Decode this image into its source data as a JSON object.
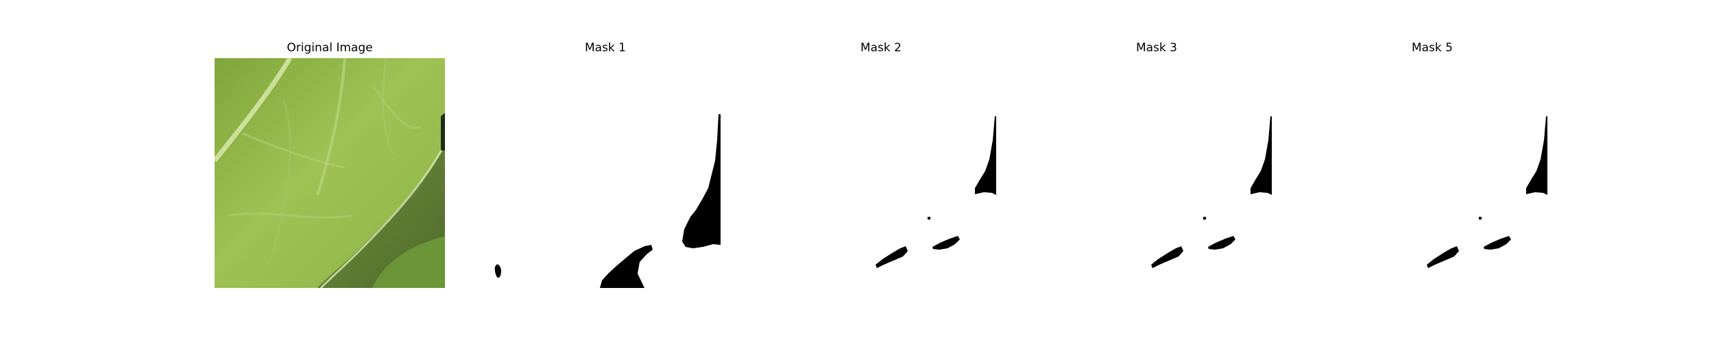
{
  "figure": {
    "panels": [
      {
        "title": "Original Image",
        "kind": "photo"
      },
      {
        "title": "Mask 1",
        "kind": "mask"
      },
      {
        "title": "Mask 2",
        "kind": "mask"
      },
      {
        "title": "Mask 3",
        "kind": "mask"
      },
      {
        "title": "Mask 5",
        "kind": "mask"
      }
    ]
  },
  "colors": {
    "mask_foreground": "#000000",
    "mask_background": "#ffffff",
    "leaf_light": "#a8c85a",
    "leaf_mid": "#8fb043",
    "leaf_dark": "#5f7e2c",
    "leaf_shadow": "#4d6a2a"
  }
}
